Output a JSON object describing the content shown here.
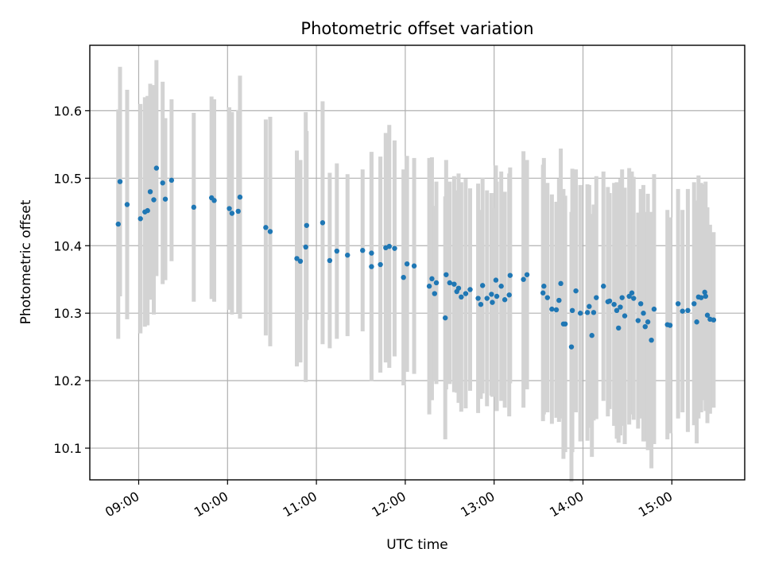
{
  "chart_data": {
    "type": "scatter",
    "title": "Photometric offset variation",
    "xlabel": "UTC time",
    "ylabel": "Photometric offset",
    "x_tick_labels": [
      "09:00",
      "10:00",
      "11:00",
      "12:00",
      "13:00",
      "14:00",
      "15:00"
    ],
    "x_ticks_hours": [
      9,
      10,
      11,
      12,
      13,
      14,
      15
    ],
    "y_ticks": [
      10.1,
      10.2,
      10.3,
      10.4,
      10.5,
      10.6
    ],
    "y_tick_labels": [
      "10.1",
      "10.2",
      "10.3",
      "10.4",
      "10.5",
      "10.6"
    ],
    "xlim_hours": [
      8.45,
      15.82
    ],
    "ylim": [
      10.053,
      10.697
    ],
    "grid": true,
    "colors": {
      "points": "#1f77b4",
      "errorbars": "#d3d3d3",
      "grid": "#b0b0b0"
    },
    "series": [
      {
        "x_hours": [
          8.77,
          8.79,
          8.87,
          9.02,
          9.07,
          9.1,
          9.13,
          9.17,
          9.2,
          9.27,
          9.3,
          9.37,
          9.62,
          9.82,
          9.85,
          10.02,
          10.05,
          10.12,
          10.14,
          10.43,
          10.48,
          10.78,
          10.82,
          10.88,
          10.89,
          11.07,
          11.15,
          11.23,
          11.35,
          11.52,
          11.62,
          11.62,
          11.72,
          11.78,
          11.82,
          11.88,
          11.98,
          12.02,
          12.1,
          12.27,
          12.3,
          12.33,
          12.35,
          12.45,
          12.46,
          12.5,
          12.55,
          12.58,
          12.6,
          12.63,
          12.68,
          12.73,
          12.82,
          12.85,
          12.87,
          12.92,
          12.97,
          12.98,
          13.02,
          13.03,
          13.08,
          13.12,
          13.17,
          13.18,
          13.33,
          13.37,
          13.55,
          13.56,
          13.6,
          13.65,
          13.7,
          13.73,
          13.75,
          13.78,
          13.8,
          13.87,
          13.88,
          13.92,
          13.97,
          14.05,
          14.07,
          14.1,
          14.12,
          14.15,
          14.23,
          14.28,
          14.3,
          14.35,
          14.38,
          14.4,
          14.42,
          14.44,
          14.47,
          14.52,
          14.55,
          14.57,
          14.62,
          14.65,
          14.68,
          14.7,
          14.73,
          14.77,
          14.8,
          14.95,
          14.98,
          15.07,
          15.12,
          15.18,
          15.25,
          15.28,
          15.3,
          15.33,
          15.37,
          15.38,
          15.4,
          15.43,
          15.47
        ],
        "y": [
          10.432,
          10.495,
          10.461,
          10.44,
          10.45,
          10.452,
          10.48,
          10.468,
          10.515,
          10.493,
          10.469,
          10.497,
          10.457,
          10.471,
          10.467,
          10.455,
          10.448,
          10.451,
          10.472,
          10.427,
          10.421,
          10.381,
          10.377,
          10.398,
          10.43,
          10.434,
          10.378,
          10.392,
          10.386,
          10.393,
          10.389,
          10.369,
          10.372,
          10.397,
          10.399,
          10.396,
          10.353,
          10.373,
          10.37,
          10.34,
          10.351,
          10.329,
          10.345,
          10.293,
          10.357,
          10.345,
          10.343,
          10.332,
          10.337,
          10.324,
          10.329,
          10.335,
          10.322,
          10.313,
          10.341,
          10.322,
          10.328,
          10.316,
          10.349,
          10.325,
          10.34,
          10.32,
          10.327,
          10.356,
          10.35,
          10.357,
          10.33,
          10.34,
          10.323,
          10.306,
          10.305,
          10.319,
          10.344,
          10.284,
          10.284,
          10.25,
          10.304,
          10.333,
          10.3,
          10.301,
          10.31,
          10.267,
          10.301,
          10.323,
          10.34,
          10.317,
          10.318,
          10.313,
          10.304,
          10.278,
          10.309,
          10.323,
          10.296,
          10.325,
          10.33,
          10.322,
          10.289,
          10.314,
          10.3,
          10.28,
          10.287,
          10.26,
          10.306,
          10.283,
          10.282,
          10.314,
          10.303,
          10.304,
          10.314,
          10.287,
          10.324,
          10.323,
          10.331,
          10.325,
          10.297,
          10.291,
          10.29
        ],
        "err": [
          0.17,
          0.17,
          0.17,
          0.17,
          0.17,
          0.17,
          0.16,
          0.17,
          0.16,
          0.15,
          0.12,
          0.12,
          0.14,
          0.15,
          0.15,
          0.15,
          0.15,
          0.15,
          0.18,
          0.16,
          0.17,
          0.16,
          0.15,
          0.2,
          0.14,
          0.18,
          0.13,
          0.13,
          0.12,
          0.12,
          0.15,
          0.17,
          0.16,
          0.17,
          0.18,
          0.16,
          0.16,
          0.16,
          0.16,
          0.19,
          0.18,
          0.13,
          0.15,
          0.18,
          0.17,
          0.15,
          0.16,
          0.15,
          0.17,
          0.17,
          0.17,
          0.15,
          0.17,
          0.14,
          0.16,
          0.16,
          0.15,
          0.14,
          0.17,
          0.17,
          0.17,
          0.16,
          0.18,
          0.16,
          0.19,
          0.17,
          0.19,
          0.19,
          0.17,
          0.17,
          0.16,
          0.18,
          0.2,
          0.2,
          0.19,
          0.2,
          0.21,
          0.18,
          0.19,
          0.19,
          0.18,
          0.18,
          0.16,
          0.18,
          0.17,
          0.17,
          0.16,
          0.18,
          0.19,
          0.17,
          0.19,
          0.19,
          0.19,
          0.19,
          0.18,
          0.18,
          0.16,
          0.17,
          0.19,
          0.17,
          0.19,
          0.19,
          0.2,
          0.17,
          0.16,
          0.17,
          0.15,
          0.18,
          0.18,
          0.18,
          0.18,
          0.17,
          0.16,
          0.17,
          0.16,
          0.14,
          0.13
        ]
      }
    ]
  }
}
